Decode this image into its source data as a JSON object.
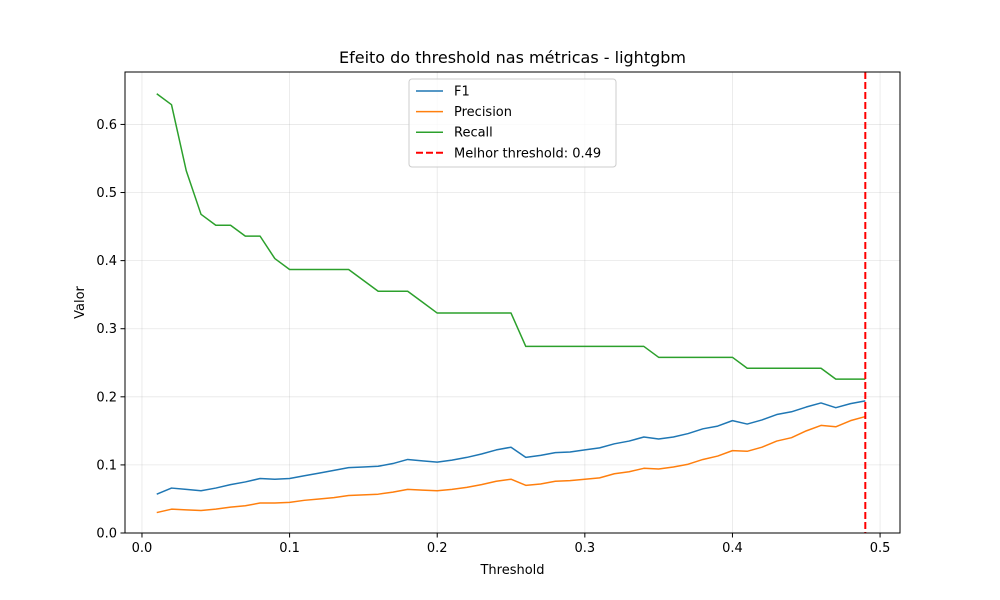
{
  "chart_data": {
    "type": "line",
    "title": "Efeito do threshold nas métricas - lightgbm",
    "xlabel": "Threshold",
    "ylabel": "Valor",
    "xlim": [
      -0.0115,
      0.5135
    ],
    "ylim": [
      0.0,
      0.677
    ],
    "xticks": [
      0.0,
      0.1,
      0.2,
      0.3,
      0.4,
      0.5
    ],
    "xtick_labels": [
      "0.0",
      "0.1",
      "0.2",
      "0.3",
      "0.4",
      "0.5"
    ],
    "yticks": [
      0.0,
      0.1,
      0.2,
      0.3,
      0.4,
      0.5,
      0.6
    ],
    "ytick_labels": [
      "0.0",
      "0.1",
      "0.2",
      "0.3",
      "0.4",
      "0.5",
      "0.6"
    ],
    "grid": true,
    "legend_position": "top-center",
    "x": [
      0.01,
      0.02,
      0.03,
      0.04,
      0.05,
      0.06,
      0.07,
      0.08,
      0.09,
      0.1,
      0.11,
      0.12,
      0.13,
      0.14,
      0.15,
      0.16,
      0.17,
      0.18,
      0.19,
      0.2,
      0.21,
      0.22,
      0.23,
      0.24,
      0.25,
      0.26,
      0.27,
      0.28,
      0.29,
      0.3,
      0.31,
      0.32,
      0.33,
      0.34,
      0.35,
      0.36,
      0.37,
      0.38,
      0.39,
      0.4,
      0.41,
      0.42,
      0.43,
      0.44,
      0.45,
      0.46,
      0.47,
      0.48,
      0.49
    ],
    "series": [
      {
        "name": "F1",
        "color": "#1f77b4",
        "values": [
          0.057,
          0.066,
          0.064,
          0.062,
          0.066,
          0.071,
          0.075,
          0.08,
          0.079,
          0.08,
          0.084,
          0.088,
          0.092,
          0.096,
          0.097,
          0.098,
          0.102,
          0.108,
          0.106,
          0.104,
          0.107,
          0.111,
          0.116,
          0.122,
          0.126,
          0.111,
          0.114,
          0.118,
          0.119,
          0.122,
          0.125,
          0.131,
          0.135,
          0.141,
          0.138,
          0.141,
          0.146,
          0.153,
          0.157,
          0.165,
          0.16,
          0.166,
          0.174,
          0.178,
          0.185,
          0.191,
          0.184,
          0.19,
          0.194
        ]
      },
      {
        "name": "Precision",
        "color": "#ff7f0e",
        "values": [
          0.03,
          0.035,
          0.034,
          0.033,
          0.035,
          0.038,
          0.04,
          0.044,
          0.044,
          0.045,
          0.048,
          0.05,
          0.052,
          0.055,
          0.056,
          0.057,
          0.06,
          0.064,
          0.063,
          0.062,
          0.064,
          0.067,
          0.071,
          0.076,
          0.079,
          0.07,
          0.072,
          0.076,
          0.077,
          0.079,
          0.081,
          0.087,
          0.09,
          0.095,
          0.094,
          0.097,
          0.101,
          0.108,
          0.113,
          0.121,
          0.12,
          0.126,
          0.135,
          0.14,
          0.15,
          0.158,
          0.156,
          0.165,
          0.171
        ]
      },
      {
        "name": "Recall",
        "color": "#2ca02c",
        "values": [
          0.645,
          0.629,
          0.532,
          0.468,
          0.452,
          0.452,
          0.436,
          0.436,
          0.403,
          0.387,
          0.387,
          0.387,
          0.387,
          0.387,
          0.371,
          0.355,
          0.355,
          0.355,
          0.339,
          0.323,
          0.323,
          0.323,
          0.323,
          0.323,
          0.323,
          0.274,
          0.274,
          0.274,
          0.274,
          0.274,
          0.274,
          0.274,
          0.274,
          0.274,
          0.258,
          0.258,
          0.258,
          0.258,
          0.258,
          0.258,
          0.242,
          0.242,
          0.242,
          0.242,
          0.242,
          0.242,
          0.226,
          0.226,
          0.226
        ]
      }
    ],
    "vline": {
      "name": "Melhor threshold: 0.49",
      "x": 0.49,
      "color": "#ff0000",
      "style": "dashed"
    }
  }
}
